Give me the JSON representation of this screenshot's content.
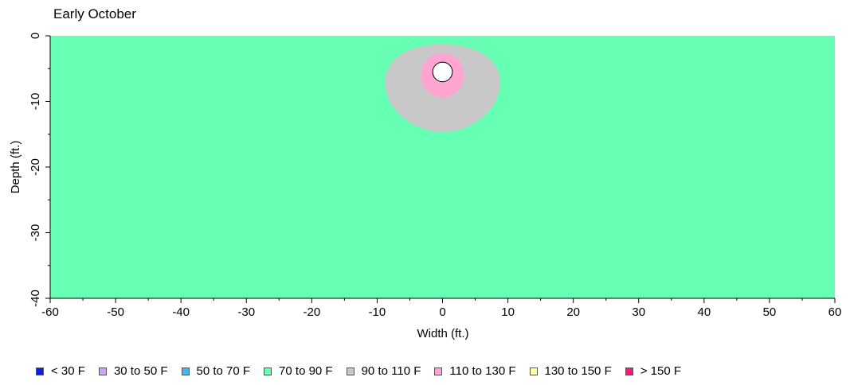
{
  "chart_data": {
    "type": "heatmap",
    "title": "Early October",
    "xlabel": "Width (ft.)",
    "ylabel": "Depth (ft.)",
    "xlim": [
      -60,
      60
    ],
    "ylim": [
      -40,
      0
    ],
    "x_ticks": [
      -60,
      -50,
      -40,
      -30,
      -20,
      -10,
      0,
      10,
      20,
      30,
      40,
      50,
      60
    ],
    "y_ticks": [
      0,
      -10,
      -20,
      -30,
      -40
    ],
    "background_zone": "70 to 90 F",
    "zones": [
      {
        "label": "90 to 110 F",
        "shape": "egg",
        "center_x": 0,
        "top_y": -1.3,
        "bottom_y": -14.7,
        "half_width": 8.8,
        "widest_y": -7.0
      },
      {
        "label": "110 to 130 F",
        "shape": "ellipse",
        "center_x": 0,
        "center_y": -6.0,
        "rx": 3.3,
        "ry": 3.4
      }
    ],
    "pipe": {
      "center_x": 0,
      "center_y": -5.5,
      "radius": 1.5,
      "color": "#ffffff"
    },
    "legend": [
      {
        "label": "< 30 F",
        "color": "#0a1ee6"
      },
      {
        "label": "30 to 50 F",
        "color": "#c8a5f5"
      },
      {
        "label": "50 to 70 F",
        "color": "#4ab4f0"
      },
      {
        "label": "70 to 90 F",
        "color": "#66ffb3"
      },
      {
        "label": "90 to 110 F",
        "color": "#c8c8c8"
      },
      {
        "label": "110 to 130 F",
        "color": "#ffa5d2"
      },
      {
        "label": "130 to 150 F",
        "color": "#ffffa5"
      },
      {
        "label": "> 150 F",
        "color": "#f01e78"
      }
    ]
  }
}
